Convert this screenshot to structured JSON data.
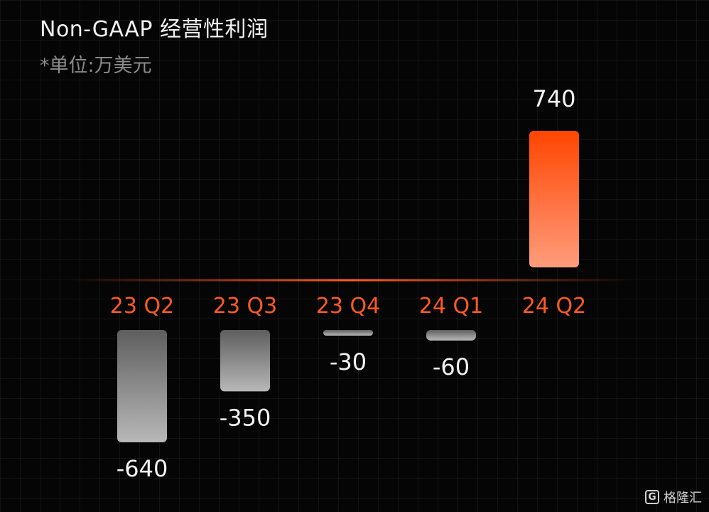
{
  "title": "Non-GAAP 经营性利润",
  "subtitle": "*单位:万美元",
  "watermark": {
    "icon": "G",
    "text": "格隆汇"
  },
  "colors": {
    "positive_top": "#ff4500",
    "positive_bottom": "#ff9c7c",
    "negative_top": "#5e5e5e",
    "negative_bottom": "#b8b8b8",
    "category_label": "#ff5a1f",
    "value_label": "#f2f2f2",
    "axis_line": "#ff5a1f"
  },
  "chart_data": {
    "type": "bar",
    "categories": [
      "23 Q2",
      "23 Q3",
      "23 Q4",
      "24 Q1",
      "24 Q2"
    ],
    "values": [
      -640,
      -350,
      -30,
      -60,
      740
    ],
    "data_labels": [
      "-640",
      "-350",
      "-30",
      "-60",
      "740"
    ],
    "title": "Non-GAAP 经营性利润",
    "unit_note": "*单位:万美元",
    "xlabel": "",
    "ylabel": "",
    "grid": true,
    "legend": "none"
  }
}
